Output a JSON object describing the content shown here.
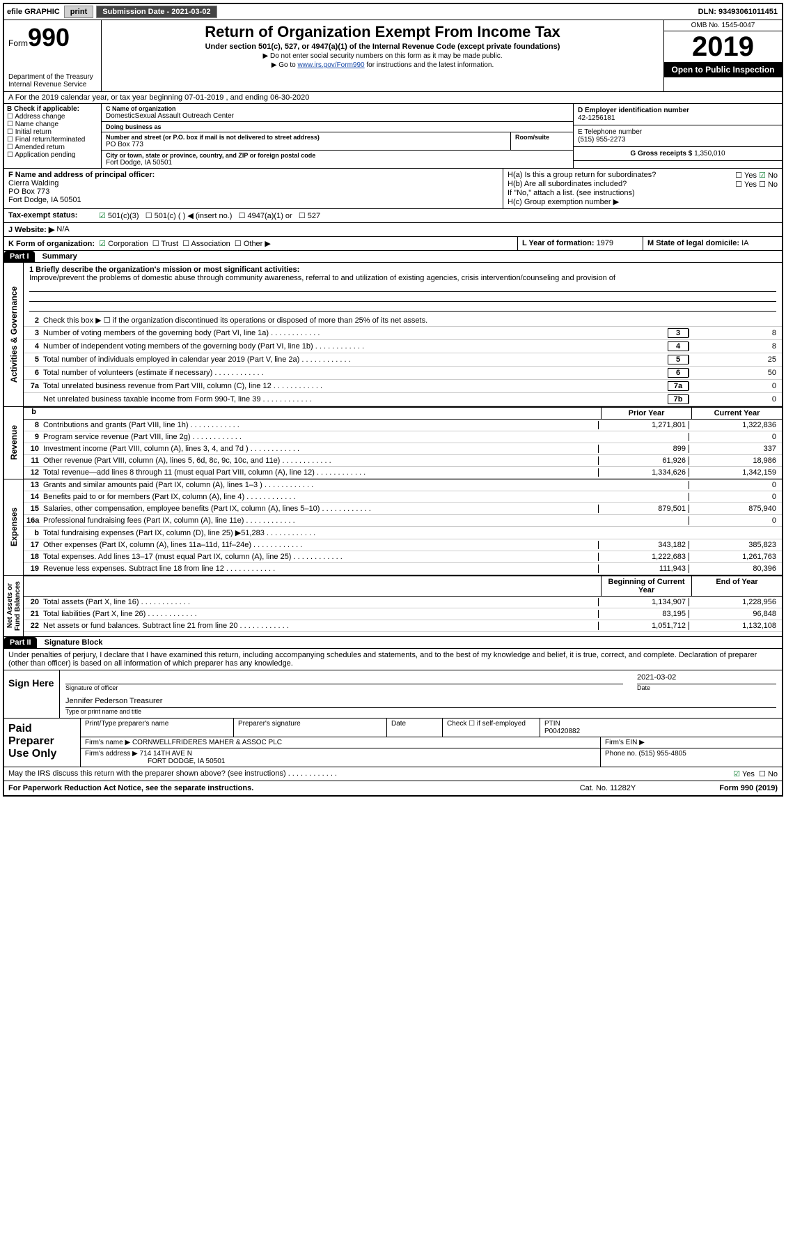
{
  "topbar": {
    "efile": "efile GRAPHIC",
    "print": "print",
    "sub_label": "Submission Date - ",
    "sub_date": "2021-03-02",
    "dln_label": "DLN: ",
    "dln": "93493061011451"
  },
  "header": {
    "form_prefix": "Form",
    "form_num": "990",
    "dept": "Department of the Treasury\nInternal Revenue Service",
    "title": "Return of Organization Exempt From Income Tax",
    "subtitle": "Under section 501(c), 527, or 4947(a)(1) of the Internal Revenue Code (except private foundations)",
    "note1": "▶ Do not enter social security numbers on this form as it may be made public.",
    "note2_pre": "▶ Go to ",
    "note2_link": "www.irs.gov/Form990",
    "note2_post": " for instructions and the latest information.",
    "omb": "OMB No. 1545-0047",
    "year": "2019",
    "open": "Open to Public Inspection"
  },
  "line_a": "A   For the 2019 calendar year, or tax year beginning 07-01-2019    , and ending 06-30-2020",
  "col_b": {
    "hdr": "B Check if applicable:",
    "items": [
      "Address change",
      "Name change",
      "Initial return",
      "Final return/terminated",
      "Amended return",
      "Application pending"
    ]
  },
  "org": {
    "c_lbl": "C Name of organization",
    "name": "DomesticSexual Assault Outreach Center",
    "dba_lbl": "Doing business as",
    "dba": "",
    "addr_lbl": "Number and street (or P.O. box if mail is not delivered to street address)",
    "room_lbl": "Room/suite",
    "addr": "PO Box 773",
    "city_lbl": "City or town, state or province, country, and ZIP or foreign postal code",
    "city": "Fort Dodge, IA  50501"
  },
  "right": {
    "d_lbl": "D Employer identification number",
    "d_val": "42-1256181",
    "e_lbl": "E Telephone number",
    "e_val": "(515) 955-2273",
    "g_lbl": "G Gross receipts $ ",
    "g_val": "1,350,010"
  },
  "officer": {
    "f_lbl": "F  Name and address of principal officer:",
    "name": "Cierra Walding",
    "addr1": "PO Box 773",
    "addr2": "Fort Dodge, IA  50501"
  },
  "h": {
    "a": "H(a)  Is this a group return for subordinates?",
    "b": "H(b)  Are all subordinates included?",
    "b_note": "If \"No,\" attach a list. (see instructions)",
    "c": "H(c)  Group exemption number ▶",
    "yes": "Yes",
    "no": "No"
  },
  "status": {
    "i_lbl": "Tax-exempt status:",
    "opts": [
      "501(c)(3)",
      "501(c) (  ) ◀ (insert no.)",
      "4947(a)(1) or",
      "527"
    ]
  },
  "website": {
    "j_lbl": "J    Website: ▶",
    "val": "N/A"
  },
  "k": {
    "lbl": "K Form of organization:",
    "opts": [
      "Corporation",
      "Trust",
      "Association",
      "Other ▶"
    ]
  },
  "l_m": {
    "l_lbl": "L Year of formation: ",
    "l_val": "1979",
    "m_lbl": "M State of legal domicile: ",
    "m_val": "IA"
  },
  "part1": {
    "hdr": "Part I",
    "title": "Summary",
    "line1_lbl": "1   Briefly describe the organization's mission or most significant activities:",
    "line1_txt": "Improve/prevent the problems of domestic abuse through community awareness, referral to and utilization of existing agencies, crisis intervention/counseling and provision of",
    "line2": "Check this box ▶ ☐  if the organization discontinued its operations or disposed of more than 25% of its net assets.",
    "gov_rows": [
      {
        "n": "3",
        "t": "Number of voting members of the governing body (Part VI, line 1a)",
        "b": "3",
        "v": "8"
      },
      {
        "n": "4",
        "t": "Number of independent voting members of the governing body (Part VI, line 1b)",
        "b": "4",
        "v": "8"
      },
      {
        "n": "5",
        "t": "Total number of individuals employed in calendar year 2019 (Part V, line 2a)",
        "b": "5",
        "v": "25"
      },
      {
        "n": "6",
        "t": "Total number of volunteers (estimate if necessary)",
        "b": "6",
        "v": "50"
      },
      {
        "n": "7a",
        "t": "Total unrelated business revenue from Part VIII, column (C), line 12",
        "b": "7a",
        "v": "0"
      },
      {
        "n": "",
        "t": "Net unrelated business taxable income from Form 990-T, line 39",
        "b": "7b",
        "v": "0"
      }
    ],
    "col_hdr": {
      "b": "b",
      "py": "Prior Year",
      "cy": "Current Year"
    },
    "rev_rows": [
      {
        "n": "8",
        "t": "Contributions and grants (Part VIII, line 1h)",
        "py": "1,271,801",
        "cy": "1,322,836"
      },
      {
        "n": "9",
        "t": "Program service revenue (Part VIII, line 2g)",
        "py": "",
        "cy": "0"
      },
      {
        "n": "10",
        "t": "Investment income (Part VIII, column (A), lines 3, 4, and 7d )",
        "py": "899",
        "cy": "337"
      },
      {
        "n": "11",
        "t": "Other revenue (Part VIII, column (A), lines 5, 6d, 8c, 9c, 10c, and 11e)",
        "py": "61,926",
        "cy": "18,986"
      },
      {
        "n": "12",
        "t": "Total revenue—add lines 8 through 11 (must equal Part VIII, column (A), line 12)",
        "py": "1,334,626",
        "cy": "1,342,159"
      }
    ],
    "exp_rows": [
      {
        "n": "13",
        "t": "Grants and similar amounts paid (Part IX, column (A), lines 1–3 )",
        "py": "",
        "cy": "0"
      },
      {
        "n": "14",
        "t": "Benefits paid to or for members (Part IX, column (A), line 4)",
        "py": "",
        "cy": "0"
      },
      {
        "n": "15",
        "t": "Salaries, other compensation, employee benefits (Part IX, column (A), lines 5–10)",
        "py": "879,501",
        "cy": "875,940"
      },
      {
        "n": "16a",
        "t": "Professional fundraising fees (Part IX, column (A), line 11e)",
        "py": "",
        "cy": "0"
      },
      {
        "n": "b",
        "t": "Total fundraising expenses (Part IX, column (D), line 25) ▶51,283",
        "py": "shade",
        "cy": "shade"
      },
      {
        "n": "17",
        "t": "Other expenses (Part IX, column (A), lines 11a–11d, 11f–24e)",
        "py": "343,182",
        "cy": "385,823"
      },
      {
        "n": "18",
        "t": "Total expenses. Add lines 13–17 (must equal Part IX, column (A), line 25)",
        "py": "1,222,683",
        "cy": "1,261,763"
      },
      {
        "n": "19",
        "t": "Revenue less expenses. Subtract line 18 from line 12",
        "py": "111,943",
        "cy": "80,396"
      }
    ],
    "net_hdr": {
      "py": "Beginning of Current Year",
      "cy": "End of Year"
    },
    "net_rows": [
      {
        "n": "20",
        "t": "Total assets (Part X, line 16)",
        "py": "1,134,907",
        "cy": "1,228,956"
      },
      {
        "n": "21",
        "t": "Total liabilities (Part X, line 26)",
        "py": "83,195",
        "cy": "96,848"
      },
      {
        "n": "22",
        "t": "Net assets or fund balances. Subtract line 21 from line 20",
        "py": "1,051,712",
        "cy": "1,132,108"
      }
    ],
    "side_labels": {
      "gov": "Activities & Governance",
      "rev": "Revenue",
      "exp": "Expenses",
      "net": "Net Assets or\nFund Balances"
    }
  },
  "part2": {
    "hdr": "Part II",
    "title": "Signature Block",
    "perjury": "Under penalties of perjury, I declare that I have examined this return, including accompanying schedules and statements, and to the best of my knowledge and belief, it is true, correct, and complete. Declaration of preparer (other than officer) is based on all information of which preparer has any knowledge.",
    "sign_here": "Sign Here",
    "sig_officer": "Signature of officer",
    "sig_date": "2021-03-02",
    "date_lbl": "Date",
    "officer_name": "Jennifer Pederson  Treasurer",
    "type_lbl": "Type or print name and title",
    "paid": "Paid Preparer Use Only",
    "prep_name_lbl": "Print/Type preparer's name",
    "prep_sig_lbl": "Preparer's signature",
    "prep_date_lbl": "Date",
    "check_lbl": "Check ☐  if self-employed",
    "ptin_lbl": "PTIN",
    "ptin": "P00420882",
    "firm_name_lbl": "Firm's name    ▶ ",
    "firm_name": "CORNWELLFRIDERES MAHER & ASSOC PLC",
    "firm_ein_lbl": "Firm's EIN ▶",
    "firm_addr_lbl": "Firm's address ▶ ",
    "firm_addr1": "714 14TH AVE N",
    "firm_addr2": "FORT DODGE, IA  50501",
    "phone_lbl": "Phone no. ",
    "phone": "(515) 955-4805",
    "discuss": "May the IRS discuss this return with the preparer shown above? (see instructions)",
    "yes": "Yes",
    "no": "No"
  },
  "footer": {
    "left": "For Paperwork Reduction Act Notice, see the separate instructions.",
    "mid": "Cat. No. 11282Y",
    "right": "Form 990 (2019)"
  }
}
